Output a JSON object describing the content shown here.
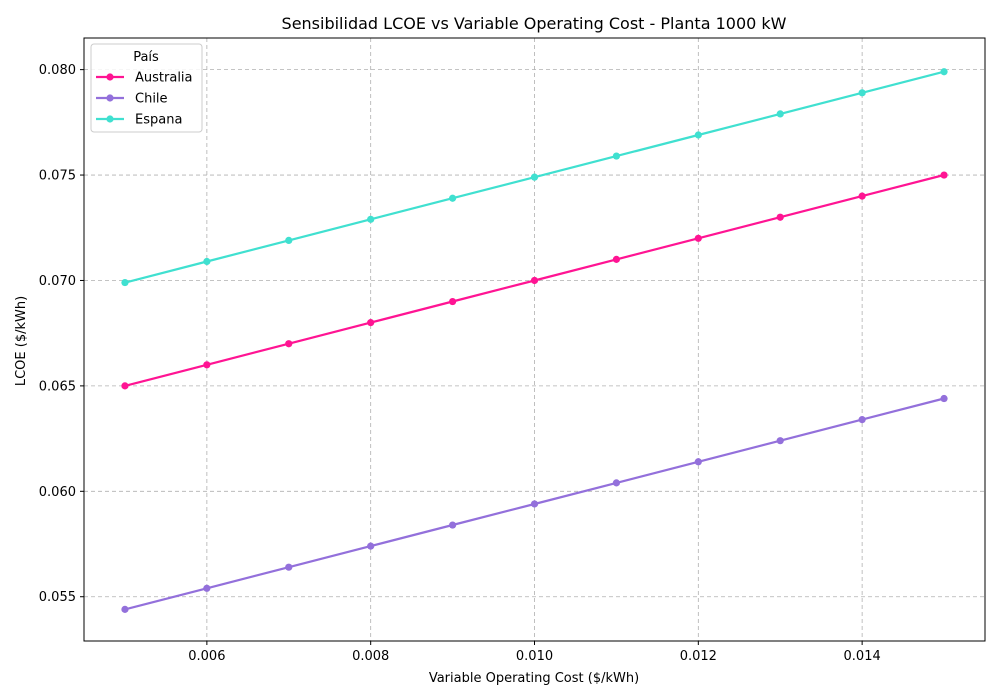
{
  "chart_data": {
    "type": "line",
    "title": "Sensibilidad LCOE vs Variable Operating Cost - Planta 1000 kW",
    "xlabel": "Variable Operating Cost ($/kWh)",
    "ylabel": "LCOE ($/kWh)",
    "xlim": [
      0.0045,
      0.0155
    ],
    "ylim": [
      0.0529,
      0.0815
    ],
    "xticks": [
      0.006,
      0.008,
      0.01,
      0.012,
      0.014
    ],
    "xtick_labels": [
      "0.006",
      "0.008",
      "0.010",
      "0.012",
      "0.014"
    ],
    "yticks": [
      0.055,
      0.06,
      0.065,
      0.07,
      0.075,
      0.08
    ],
    "ytick_labels": [
      "0.055",
      "0.060",
      "0.065",
      "0.070",
      "0.075",
      "0.080"
    ],
    "grid": true,
    "legend_title": "País",
    "legend_position": "top-left",
    "x": [
      0.005,
      0.006,
      0.007,
      0.008,
      0.009,
      0.01,
      0.011,
      0.012,
      0.013,
      0.014,
      0.015
    ],
    "series": [
      {
        "name": "Australia",
        "color": "#ff1493",
        "values": [
          0.065,
          0.066,
          0.067,
          0.068,
          0.069,
          0.07,
          0.071,
          0.072,
          0.073,
          0.074,
          0.075
        ]
      },
      {
        "name": "Chile",
        "color": "#9370db",
        "values": [
          0.0544,
          0.0554,
          0.0564,
          0.0574,
          0.0584,
          0.0594,
          0.0604,
          0.0614,
          0.0624,
          0.0634,
          0.0644
        ]
      },
      {
        "name": "Espana",
        "color": "#40e0d0",
        "values": [
          0.0699,
          0.0709,
          0.0719,
          0.0729,
          0.0739,
          0.0749,
          0.0759,
          0.0769,
          0.0779,
          0.0789,
          0.0799
        ]
      }
    ]
  }
}
